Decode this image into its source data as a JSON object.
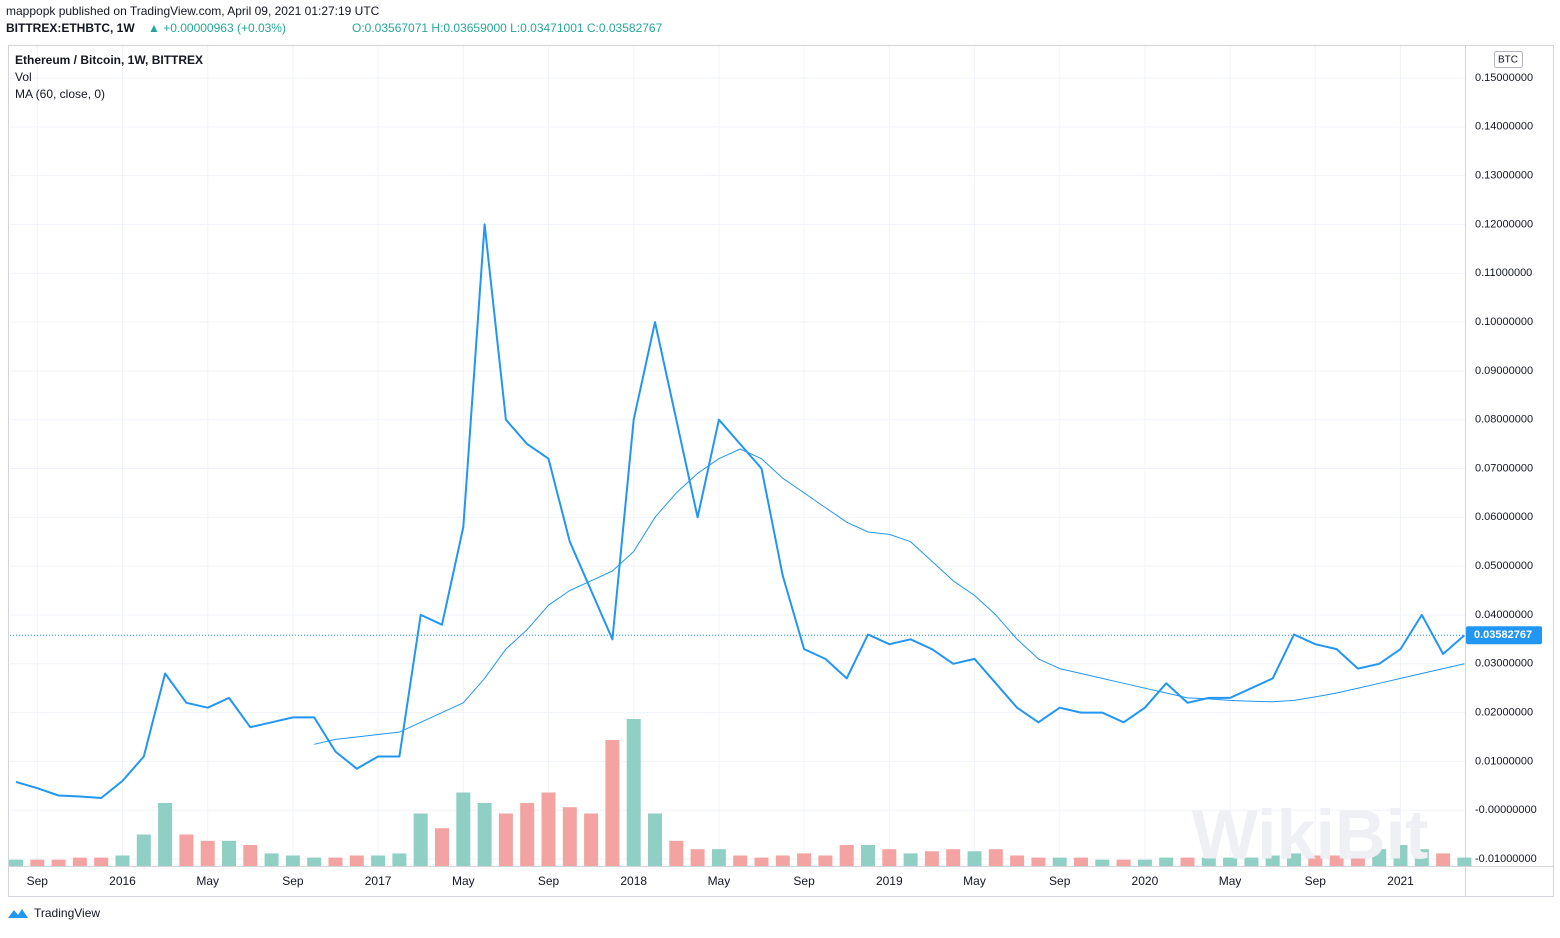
{
  "header": {
    "publisher": "mappopk published on TradingView.com, April 09, 2021 01:27:19 UTC",
    "symbol": "BITTREX:ETHBTC, 1W",
    "change": "▲ +0.00000963 (+0.03%)",
    "ohlc": "O:0.03567071 H:0.03659000 L:0.03471001 C:0.03582767"
  },
  "footer": "TradingView",
  "watermark": "WikiBit",
  "chart_data": {
    "type": "line",
    "title": "Ethereum / Bitcoin, 1W, BITTREX",
    "currency": "BTC",
    "x": [
      "2015-08",
      "2015-09",
      "2015-10",
      "2015-11",
      "2015-12",
      "2016-01",
      "2016-02",
      "2016-03",
      "2016-04",
      "2016-05",
      "2016-06",
      "2016-07",
      "2016-08",
      "2016-09",
      "2016-10",
      "2016-11",
      "2016-12",
      "2017-01",
      "2017-02",
      "2017-03",
      "2017-04",
      "2017-05",
      "2017-06",
      "2017-07",
      "2017-08",
      "2017-09",
      "2017-10",
      "2017-11",
      "2017-12",
      "2018-01",
      "2018-02",
      "2018-03",
      "2018-04",
      "2018-05",
      "2018-06",
      "2018-07",
      "2018-08",
      "2018-09",
      "2018-10",
      "2018-11",
      "2018-12",
      "2019-01",
      "2019-02",
      "2019-03",
      "2019-04",
      "2019-05",
      "2019-06",
      "2019-07",
      "2019-08",
      "2019-09",
      "2019-10",
      "2019-11",
      "2019-12",
      "2020-01",
      "2020-02",
      "2020-03",
      "2020-04",
      "2020-05",
      "2020-06",
      "2020-07",
      "2020-08",
      "2020-09",
      "2020-10",
      "2020-11",
      "2020-12",
      "2021-01",
      "2021-02",
      "2021-03",
      "2021-04"
    ],
    "series": [
      {
        "name": "Ethereum / Bitcoin",
        "color": "#2196f3",
        "width": 2,
        "values": [
          0.0058,
          0.0045,
          0.003,
          0.0028,
          0.0025,
          0.006,
          0.011,
          0.028,
          0.022,
          0.021,
          0.023,
          0.017,
          0.018,
          0.019,
          0.019,
          0.012,
          0.0085,
          0.011,
          0.011,
          0.04,
          0.038,
          0.058,
          0.12,
          0.08,
          0.075,
          0.072,
          0.055,
          0.045,
          0.035,
          0.08,
          0.1,
          0.08,
          0.06,
          0.08,
          0.075,
          0.07,
          0.048,
          0.033,
          0.031,
          0.027,
          0.036,
          0.034,
          0.035,
          0.033,
          0.03,
          0.031,
          0.026,
          0.021,
          0.018,
          0.021,
          0.02,
          0.02,
          0.018,
          0.021,
          0.026,
          0.022,
          0.023,
          0.023,
          0.025,
          0.027,
          0.036,
          0.034,
          0.033,
          0.029,
          0.03,
          0.033,
          0.04,
          0.032,
          0.03582767
        ]
      },
      {
        "name": "MA (60, close, 0)",
        "color": "#2196f3",
        "width": 1,
        "values": [
          null,
          null,
          null,
          null,
          null,
          null,
          null,
          null,
          null,
          null,
          null,
          null,
          null,
          null,
          0.0135,
          0.0145,
          0.015,
          0.0155,
          0.016,
          0.018,
          0.02,
          0.022,
          0.027,
          0.033,
          0.037,
          0.042,
          0.045,
          0.047,
          0.049,
          0.053,
          0.06,
          0.065,
          0.069,
          0.072,
          0.074,
          0.072,
          0.068,
          0.065,
          0.062,
          0.059,
          0.057,
          0.0565,
          0.055,
          0.051,
          0.047,
          0.044,
          0.04,
          0.035,
          0.031,
          0.029,
          0.028,
          0.027,
          0.026,
          0.025,
          0.024,
          0.023,
          0.0228,
          0.0225,
          0.0223,
          0.0222,
          0.0225,
          0.0232,
          0.024,
          0.025,
          0.026,
          0.027,
          0.028,
          0.029,
          0.03
        ]
      }
    ],
    "volume": {
      "name": "Vol",
      "up_color": "#8fcfc4",
      "down_color": "#f4a3a3",
      "vlim": [
        0,
        100
      ],
      "values": [
        3,
        3,
        3,
        4,
        4,
        5,
        15,
        30,
        15,
        12,
        12,
        10,
        6,
        5,
        4,
        4,
        5,
        5,
        6,
        25,
        18,
        35,
        30,
        25,
        30,
        35,
        28,
        25,
        60,
        70,
        25,
        12,
        8,
        8,
        5,
        4,
        5,
        6,
        5,
        10,
        10,
        8,
        6,
        7,
        8,
        7,
        8,
        5,
        4,
        4,
        4,
        3,
        3,
        3,
        4,
        4,
        4,
        4,
        4,
        5,
        6,
        5,
        5,
        5,
        8,
        10,
        8,
        6,
        4
      ]
    },
    "ylim": [
      -0.01,
      0.15
    ],
    "yticks": [
      {
        "value": 0.15,
        "label": "0.15000000"
      },
      {
        "value": 0.14,
        "label": "0.14000000"
      },
      {
        "value": 0.13,
        "label": "0.13000000"
      },
      {
        "value": 0.12,
        "label": "0.12000000"
      },
      {
        "value": 0.11,
        "label": "0.11000000"
      },
      {
        "value": 0.1,
        "label": "0.10000000"
      },
      {
        "value": 0.09,
        "label": "0.09000000"
      },
      {
        "value": 0.08,
        "label": "0.08000000"
      },
      {
        "value": 0.07,
        "label": "0.07000000"
      },
      {
        "value": 0.06,
        "label": "0.06000000"
      },
      {
        "value": 0.05,
        "label": "0.05000000"
      },
      {
        "value": 0.04,
        "label": "0.04000000"
      },
      {
        "value": 0.03,
        "label": "0.03000000"
      },
      {
        "value": 0.02,
        "label": "0.02000000"
      },
      {
        "value": 0.01,
        "label": "0.01000000"
      },
      {
        "value": 0,
        "label": "-0.00000000"
      },
      {
        "value": -0.01,
        "label": "-0.01000000"
      }
    ],
    "xticks": [
      {
        "value": "2015-09",
        "label": "Sep"
      },
      {
        "value": "2016-01",
        "label": "2016"
      },
      {
        "value": "2016-05",
        "label": "May"
      },
      {
        "value": "2016-09",
        "label": "Sep"
      },
      {
        "value": "2017-01",
        "label": "2017"
      },
      {
        "value": "2017-05",
        "label": "May"
      },
      {
        "value": "2017-09",
        "label": "Sep"
      },
      {
        "value": "2018-01",
        "label": "2018"
      },
      {
        "value": "2018-05",
        "label": "May"
      },
      {
        "value": "2018-09",
        "label": "Sep"
      },
      {
        "value": "2019-01",
        "label": "2019"
      },
      {
        "value": "2019-05",
        "label": "May"
      },
      {
        "value": "2019-09",
        "label": "Sep"
      },
      {
        "value": "2020-01",
        "label": "2020"
      },
      {
        "value": "2020-05",
        "label": "May"
      },
      {
        "value": "2020-09",
        "label": "Sep"
      },
      {
        "value": "2021-01",
        "label": "2021"
      }
    ],
    "grid": true
  }
}
